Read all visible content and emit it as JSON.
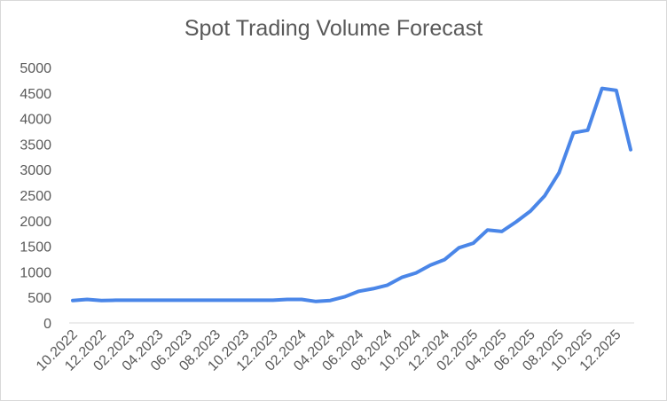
{
  "chart_data": {
    "type": "line",
    "title": "Spot Trading Volume Forecast",
    "xlabel": "",
    "ylabel": "",
    "ylim": [
      0,
      5000
    ],
    "yticks": [
      0,
      500,
      1000,
      1500,
      2000,
      2500,
      3000,
      3500,
      4000,
      4500,
      5000
    ],
    "x_tick_labels": [
      "10.2022",
      "12.2022",
      "02.2023",
      "04.2023",
      "06.2023",
      "08.2023",
      "10.2023",
      "12.2023",
      "02.2024",
      "04.2024",
      "06.2024",
      "08.2024",
      "10.2024",
      "12.2024",
      "02.2025",
      "04.2025",
      "06.2025",
      "08.2025",
      "10.2025",
      "12.2025"
    ],
    "grid": false,
    "legend": "none",
    "line_color": "#4a86e8",
    "x": [
      "10.2022",
      "11.2022",
      "12.2022",
      "01.2023",
      "02.2023",
      "03.2023",
      "04.2023",
      "05.2023",
      "06.2023",
      "07.2023",
      "08.2023",
      "09.2023",
      "10.2023",
      "11.2023",
      "12.2023",
      "01.2024",
      "02.2024",
      "03.2024",
      "04.2024",
      "05.2024",
      "06.2024",
      "07.2024",
      "08.2024",
      "09.2024",
      "10.2024",
      "11.2024",
      "12.2024",
      "01.2025",
      "02.2025",
      "03.2025",
      "04.2025",
      "05.2025",
      "06.2025",
      "07.2025",
      "08.2025",
      "09.2025",
      "10.2025",
      "11.2025",
      "12.2025",
      "01.2026"
    ],
    "series": [
      {
        "values": [
          440,
          460,
          440,
          445,
          445,
          445,
          445,
          445,
          445,
          445,
          445,
          445,
          445,
          445,
          445,
          460,
          460,
          420,
          440,
          510,
          620,
          670,
          740,
          890,
          980,
          1130,
          1240,
          1470,
          1560,
          1820,
          1790,
          1980,
          2190,
          2490,
          2940,
          3720,
          3770,
          4590,
          4550,
          3390
        ]
      }
    ]
  }
}
